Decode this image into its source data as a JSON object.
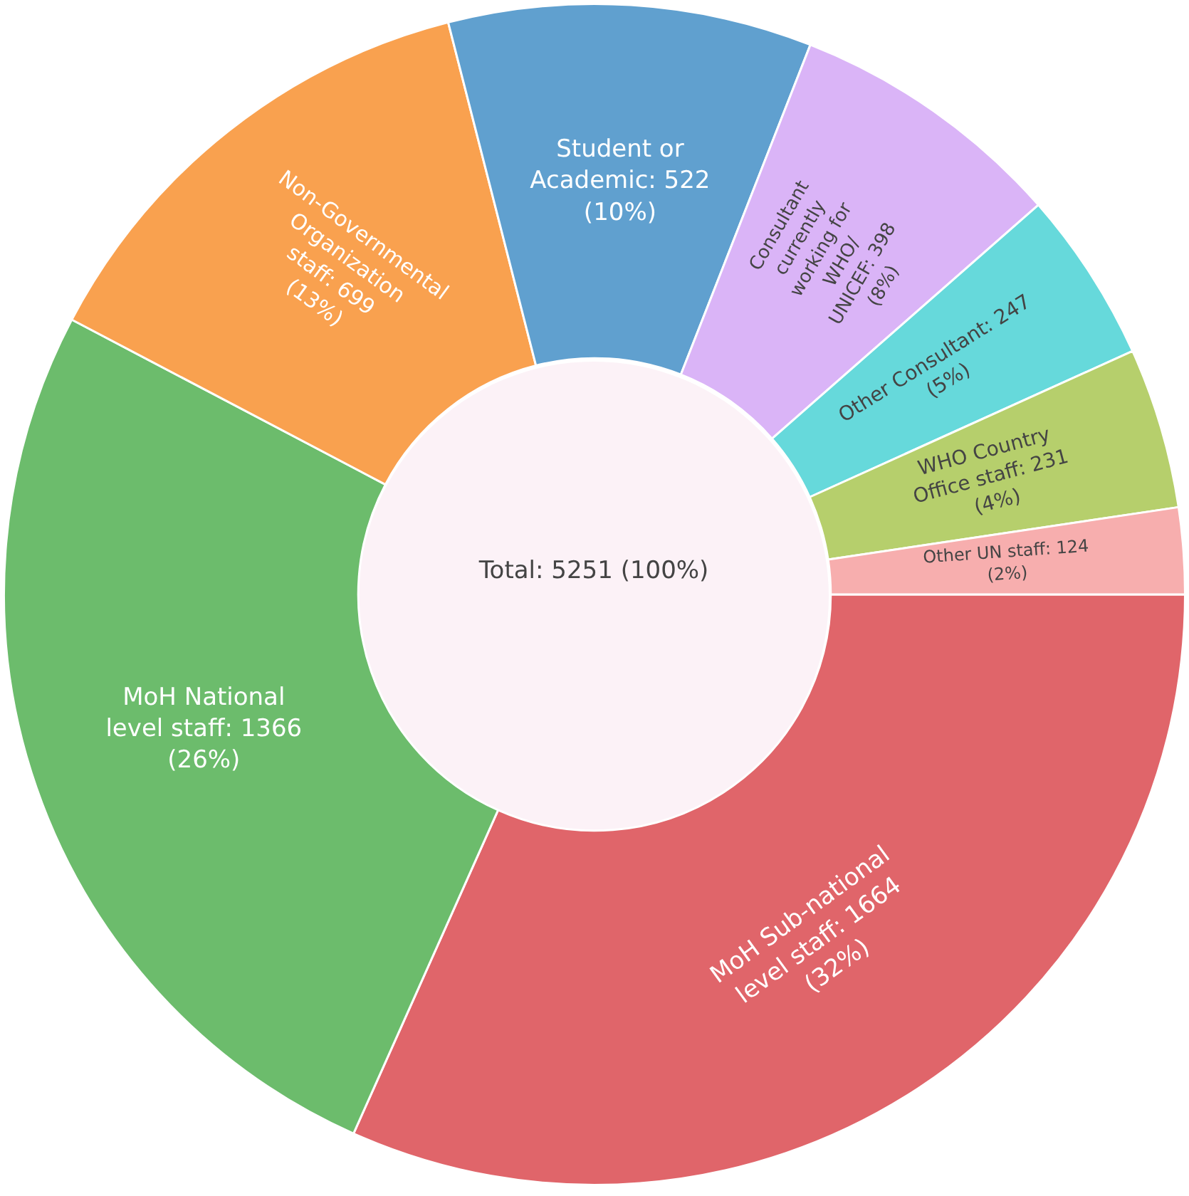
{
  "chart_data": {
    "type": "donut",
    "categories": [
      "MoH Sub-national level staff",
      "MoH National level staff",
      "Non-Governmental Organization staff",
      "Student or Academic",
      "Consultant currently working for WHO/ UNICEF",
      "Other Consultant",
      "WHO Country Office staff",
      "Other UN staff"
    ],
    "values": [
      1664,
      1366,
      699,
      522,
      398,
      247,
      231,
      124
    ],
    "value_labels": [
      "1664 (32%)",
      "1366 (26%)",
      "699 (13%)",
      "522 (10%)",
      "398 (8%)",
      "247 (5%)",
      "231 (4%)",
      "124 (2%)"
    ],
    "colors": [
      "#e0656a",
      "#6cbc6c",
      "#f9a14f",
      "#60a0cf",
      "#dab4f7",
      "#66d9db",
      "#b6cf6c",
      "#f7aeae"
    ],
    "annotations": [
      "Total: 5251 (100%)"
    ],
    "legend": false
  }
}
